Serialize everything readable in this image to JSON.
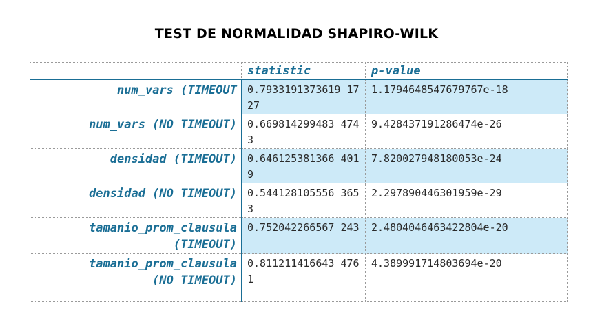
{
  "title": "TEST DE NORMALIDAD SHAPIRO-WILK",
  "columns": {
    "statistic": "statistic",
    "pvalue": "p-value"
  },
  "rows": [
    {
      "name": [
        "num_vars (TIMEOUT"
      ],
      "statistic": "0.7933191373619 1727",
      "pvalue": "1.1794648547679767e-18",
      "shaded": true
    },
    {
      "name": [
        "num_vars (NO TIMEOUT)"
      ],
      "statistic": "0.669814299483 4743",
      "pvalue": "9.428437191286474e-26",
      "shaded": false
    },
    {
      "name": [
        "densidad (TIMEOUT)"
      ],
      "statistic": "0.646125381366 4019",
      "pvalue": "7.820027948180053e-24",
      "shaded": true
    },
    {
      "name": [
        "densidad (NO TIMEOUT)"
      ],
      "statistic": "0.544128105556 3653",
      "pvalue": "2.297890446301959e-29",
      "shaded": false
    },
    {
      "name": [
        "tamanio_prom_clausula",
        "(TIMEOUT)"
      ],
      "statistic": "0.752042266567 243",
      "pvalue": "2.4804046463422804e-20",
      "shaded": true
    },
    {
      "name": [
        "tamanio_prom_clausula",
        "(NO TIMEOUT)"
      ],
      "statistic": "0.811211416643 4761",
      "pvalue": "4.389991714803694e-20",
      "shaded": false
    }
  ]
}
